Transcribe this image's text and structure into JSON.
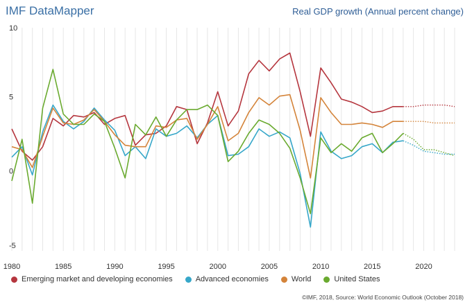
{
  "header": {
    "brand": "IMF DataMapper",
    "title": "Real GDP growth (Annual percent change)"
  },
  "footer": {
    "source": "©IMF, 2018, Source: World Economic Outlook (October 2018)"
  },
  "chart_data": {
    "type": "line",
    "title": "Real GDP growth (Annual percent change)",
    "xlabel": "",
    "ylabel": "",
    "xlim": [
      1980,
      2023
    ],
    "ylim": [
      -5,
      10
    ],
    "x_ticks": [
      1980,
      1985,
      1990,
      1995,
      2000,
      2005,
      2010,
      2015,
      2020
    ],
    "y_ticks": [
      10,
      5,
      0,
      -5
    ],
    "grid": "vertical",
    "legend_position": "bottom",
    "actual_end_year": 2018,
    "projection_style": "dotted",
    "x": [
      1980,
      1981,
      1982,
      1983,
      1984,
      1985,
      1986,
      1987,
      1988,
      1989,
      1990,
      1991,
      1992,
      1993,
      1994,
      1995,
      1996,
      1997,
      1998,
      1999,
      2000,
      2001,
      2002,
      2003,
      2004,
      2005,
      2006,
      2007,
      2008,
      2009,
      2010,
      2011,
      2012,
      2013,
      2014,
      2015,
      2016,
      2017,
      2018,
      2019,
      2020,
      2021,
      2022,
      2023
    ],
    "series": [
      {
        "name": "Emerging market and developing economies",
        "color": "#b5363e",
        "values": [
          3.2,
          1.7,
          1.1,
          2.0,
          3.9,
          3.4,
          4.1,
          4.0,
          4.3,
          3.5,
          3.9,
          4.1,
          2.1,
          2.8,
          2.9,
          3.4,
          4.7,
          4.5,
          2.2,
          3.6,
          5.7,
          3.4,
          4.4,
          6.9,
          7.8,
          7.1,
          7.9,
          8.3,
          5.7,
          2.7,
          7.3,
          6.3,
          5.2,
          5.0,
          4.7,
          4.3,
          4.4,
          4.7,
          4.7,
          4.7,
          4.8,
          4.8,
          4.8,
          4.7
        ]
      },
      {
        "name": "Advanced economies",
        "color": "#36a7c9",
        "values": [
          1.3,
          2.0,
          0.1,
          3.0,
          4.8,
          3.7,
          3.2,
          3.7,
          4.6,
          3.8,
          3.1,
          1.4,
          2.0,
          1.2,
          3.2,
          2.7,
          2.9,
          3.4,
          2.6,
          3.5,
          4.1,
          1.4,
          1.5,
          2.0,
          3.2,
          2.7,
          3.0,
          2.6,
          0.2,
          -3.4,
          3.0,
          1.7,
          1.2,
          1.4,
          2.0,
          2.2,
          1.6,
          2.3,
          2.4,
          2.1,
          1.7,
          1.6,
          1.5,
          1.5
        ]
      },
      {
        "name": "World",
        "color": "#d4843a",
        "values": [
          2.0,
          1.8,
          0.6,
          2.7,
          4.6,
          3.6,
          3.5,
          3.8,
          4.5,
          3.7,
          2.8,
          2.1,
          2.0,
          2.0,
          3.4,
          3.3,
          3.8,
          3.9,
          2.5,
          3.5,
          4.7,
          2.4,
          2.9,
          4.3,
          5.3,
          4.8,
          5.4,
          5.5,
          3.1,
          -0.1,
          5.3,
          4.3,
          3.5,
          3.5,
          3.6,
          3.5,
          3.3,
          3.7,
          3.7,
          3.7,
          3.7,
          3.6,
          3.6,
          3.6
        ]
      },
      {
        "name": "United States",
        "color": "#6aaa2f",
        "values": [
          -0.3,
          2.5,
          -1.8,
          4.6,
          7.2,
          4.2,
          3.5,
          3.5,
          4.2,
          3.7,
          1.9,
          -0.1,
          3.5,
          2.8,
          4.0,
          2.7,
          3.8,
          4.5,
          4.5,
          4.8,
          4.1,
          1.0,
          1.7,
          2.9,
          3.8,
          3.5,
          2.9,
          1.9,
          -0.1,
          -2.5,
          2.6,
          1.6,
          2.2,
          1.7,
          2.6,
          2.9,
          1.6,
          2.2,
          2.9,
          2.5,
          1.8,
          1.8,
          1.6,
          1.4
        ]
      }
    ]
  }
}
